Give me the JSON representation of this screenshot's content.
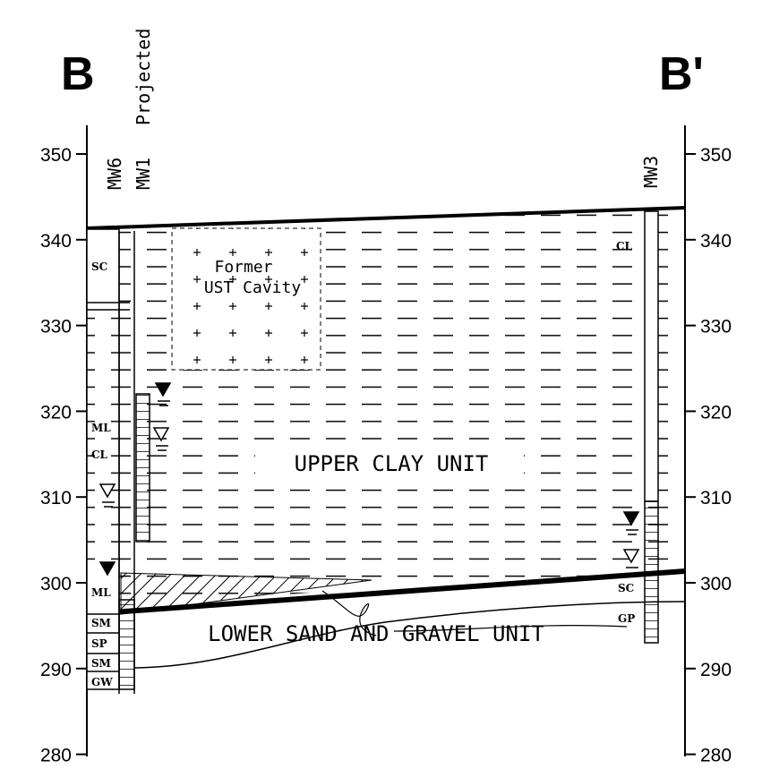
{
  "section_labels": {
    "left": "B",
    "right": "B'"
  },
  "elevation_axis": {
    "ticks": [
      350,
      340,
      330,
      320,
      310,
      300,
      290,
      280
    ]
  },
  "wells": {
    "mw6": "MW6",
    "mw1": "MW1",
    "mw1_note": "Projected",
    "mw3": "MW3"
  },
  "cavity": {
    "line1": "Former",
    "line2": "UST Cavity"
  },
  "units": {
    "upper": "UPPER CLAY UNIT",
    "lower": "LOWER SAND AND GRAVEL UNIT"
  },
  "soil_left": [
    "SC",
    "ML",
    "CL",
    "ML",
    "SM",
    "SP",
    "SM",
    "GW"
  ],
  "soil_right": [
    "CL",
    "SC",
    "GP"
  ]
}
